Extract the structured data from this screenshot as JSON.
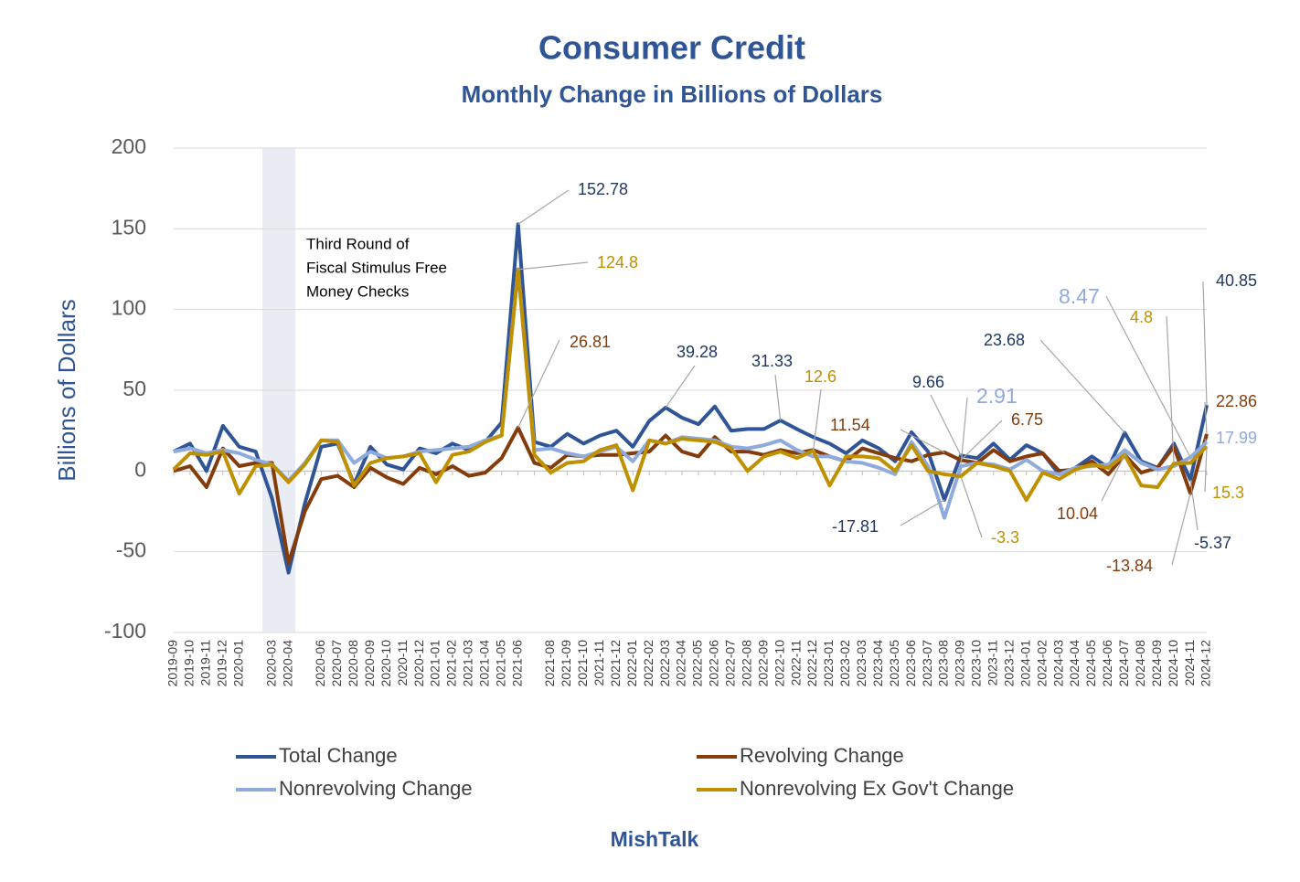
{
  "chart_data": {
    "type": "line",
    "title": "Consumer Credit",
    "subtitle": "Monthly Change in Billions of Dollars",
    "y_label": "Billions of Dollars",
    "annotation": [
      "Third Round of",
      "Fiscal Stimulus Free",
      "Money Checks"
    ],
    "source": "MishTalk",
    "ylim": [
      -100,
      200
    ],
    "yticks": [
      -100,
      -50,
      0,
      50,
      100,
      150,
      200
    ],
    "grid": true,
    "categories": [
      "2019-09",
      "2019-10",
      "2019-11",
      "2019-12",
      "2020-01",
      null,
      "2020-03",
      "2020-04",
      null,
      "2020-06",
      "2020-07",
      "2020-08",
      "2020-09",
      "2020-10",
      "2020-11",
      "2020-12",
      "2021-01",
      "2021-02",
      "2021-03",
      "2021-04",
      "2021-05",
      "2021-06",
      null,
      "2021-08",
      "2021-09",
      "2021-10",
      "2021-11",
      "2021-12",
      "2022-01",
      "2022-02",
      "2022-03",
      "2022-04",
      "2022-05",
      "2022-06",
      "2022-07",
      "2022-08",
      "2022-09",
      "2022-10",
      "2022-11",
      "2022-12",
      "2023-01",
      "2023-02",
      "2023-03",
      "2023-04",
      "2023-05",
      "2023-06",
      "2023-07",
      "2023-08",
      "2023-09",
      "2023-10",
      "2023-11",
      "2023-12",
      "2024-01",
      "2024-02",
      "2024-03",
      "2024-04",
      "2024-05",
      "2024-06",
      "2024-07",
      "2024-08",
      "2024-09",
      "2024-10",
      "2024-11",
      "2024-12"
    ],
    "series": [
      {
        "name": "Total Change",
        "color": "#2f5597",
        "values": [
          12,
          17,
          0,
          28,
          15,
          12,
          -17,
          -63,
          -20,
          15,
          17,
          -8,
          15,
          4,
          1,
          14,
          11,
          17,
          13,
          18,
          30,
          152.78,
          18,
          15,
          23,
          17,
          22,
          25,
          15,
          31,
          39.28,
          33,
          29,
          40,
          25,
          26,
          26,
          31.33,
          26,
          21,
          17,
          11,
          19,
          14,
          6,
          24,
          12,
          -17.81,
          9.66,
          8,
          17,
          7,
          16,
          11,
          -2,
          2,
          9,
          2,
          23.68,
          6,
          2,
          17,
          -5.37,
          40.85
        ]
      },
      {
        "name": "Revolving Change",
        "color": "#843c0c",
        "values": [
          0,
          3,
          -10,
          14,
          3,
          5,
          5,
          -57,
          -25,
          -5,
          -3,
          -10,
          2,
          -4,
          -8,
          2,
          -2,
          3,
          -3,
          -1,
          8,
          26.81,
          5,
          2,
          10,
          9,
          10,
          10,
          11,
          12,
          22,
          12,
          9,
          21,
          12,
          12,
          10,
          13,
          11,
          13,
          9,
          6,
          14,
          11,
          8,
          6,
          10,
          11.54,
          6.75,
          5,
          13,
          6,
          9,
          11,
          0,
          1,
          6,
          -2,
          10.04,
          -1,
          2,
          15,
          -13.84,
          22.86
        ]
      },
      {
        "name": "Nonrevolving Change",
        "color": "#8faadc",
        "values": [
          12,
          14,
          11,
          13,
          11,
          7,
          4,
          -6,
          5,
          19,
          19,
          5,
          12,
          8,
          9,
          12,
          13,
          14,
          15,
          19,
          22,
          125,
          13,
          14,
          11,
          9,
          12,
          15,
          6,
          19,
          17,
          21,
          20,
          19,
          15,
          14,
          16,
          19,
          13,
          9,
          9,
          6,
          5,
          2,
          -2,
          18,
          3,
          -29,
          2.91,
          5,
          4,
          1,
          7,
          0,
          -2,
          2,
          3,
          4,
          13,
          5,
          1,
          3,
          8.47,
          17.99
        ]
      },
      {
        "name": "Nonrevolving Ex Gov't Change",
        "color": "#bf9000",
        "values": [
          1,
          11,
          10,
          12,
          -14,
          3,
          4,
          -7,
          4,
          19,
          18,
          -9,
          5,
          8,
          9,
          11,
          -7,
          10,
          12,
          18,
          22,
          124.8,
          10,
          -1,
          5,
          6,
          13,
          16,
          -12,
          19,
          17,
          20,
          19,
          18,
          14,
          0,
          9,
          12,
          8,
          12.6,
          -9,
          9,
          9,
          8,
          0,
          16,
          0,
          -2,
          -3.3,
          5,
          3,
          0,
          -18,
          -1,
          -5,
          1,
          4,
          2,
          10,
          -9,
          -10,
          4.8,
          5,
          15.3
        ]
      }
    ]
  }
}
